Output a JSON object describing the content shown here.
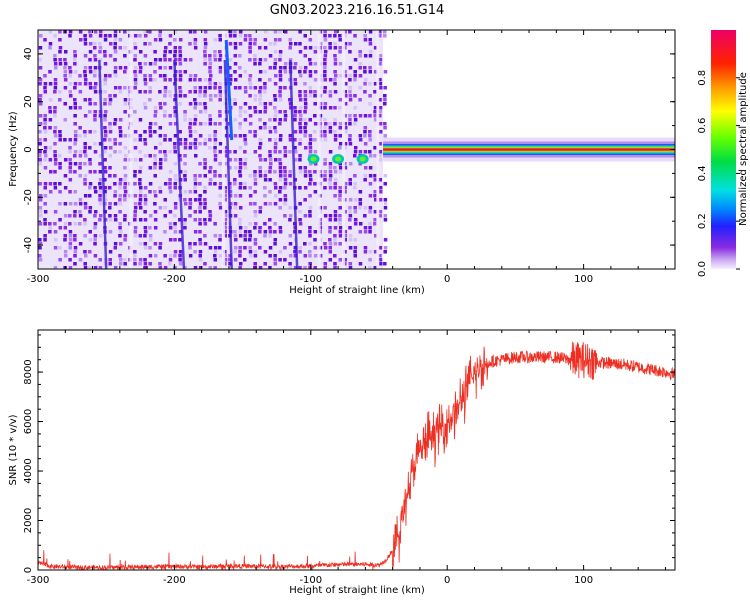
{
  "figure_title": "GN03.2023.216.16.51.G14",
  "colors": {
    "snr_line": "#ee2e22",
    "tone_core": "#dd1144",
    "axis": "#000000"
  },
  "chart_data": [
    {
      "type": "heatmap",
      "xlabel": "Height of straight line (km)",
      "ylabel": "Frequency (Hz)",
      "xlim": [
        -300,
        167
      ],
      "ylim": [
        -50,
        50
      ],
      "xticks": [
        "-300",
        "-200",
        "-100",
        "0",
        "100"
      ],
      "yticks": [
        "-40",
        "-20",
        "0",
        "20",
        "40"
      ],
      "noise_region_x": [
        -300,
        -47
      ],
      "tone_region_x": [
        -47,
        167
      ],
      "tone_frequency_hz": 0,
      "colorbar": {
        "label": "Normalized spectral amplitude",
        "range": [
          0.0,
          1.0
        ],
        "ticks": [
          "0.0",
          "0.2",
          "0.4",
          "0.6",
          "0.8"
        ],
        "colormap": "rainbow (white-lavender → violet → blue → cyan → green → yellow → orange → red → magenta)"
      }
    },
    {
      "type": "line",
      "xlabel": "Height of straight line (km)",
      "ylabel": "SNR (10 * v/v)",
      "xlim": [
        -300,
        167
      ],
      "ylim": [
        0,
        9700
      ],
      "xticks": [
        "-300",
        "-200",
        "-100",
        "0",
        "100"
      ],
      "yticks": [
        "0",
        "2000",
        "4000",
        "6000",
        "8000"
      ],
      "grid": false,
      "series": [
        {
          "x": [
            -300,
            -290,
            -270,
            -250,
            -230,
            -200,
            -180,
            -160,
            -140,
            -120,
            -100,
            -80,
            -70,
            -60,
            -50,
            -45,
            -40,
            -35,
            -30,
            -25,
            -20,
            -15,
            -10,
            -5,
            0,
            5,
            10,
            15,
            20,
            25,
            30,
            40,
            50,
            60,
            70,
            80,
            90,
            100,
            110,
            120,
            130,
            140,
            150,
            160,
            167
          ],
          "values": [
            300,
            140,
            110,
            100,
            120,
            140,
            130,
            160,
            150,
            140,
            160,
            220,
            230,
            230,
            200,
            400,
            800,
            1500,
            3000,
            4000,
            4800,
            5200,
            5500,
            5700,
            6000,
            6300,
            6800,
            7400,
            7900,
            8200,
            8400,
            8500,
            8600,
            8600,
            8600,
            8600,
            8500,
            8500,
            8400,
            8350,
            8300,
            8200,
            8100,
            8000,
            7900
          ]
        }
      ]
    }
  ]
}
